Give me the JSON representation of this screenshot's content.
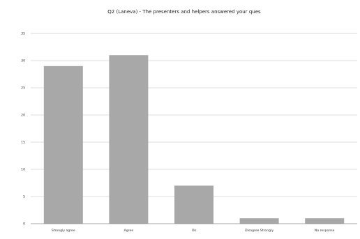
{
  "chart_data": {
    "type": "bar",
    "title": "Q2  (Laneva)  -  The  presenters  and  helpers  answered  your  ques",
    "xlabel": "",
    "ylabel": "",
    "categories": [
      "Strongly agree",
      "Agree",
      "Ok",
      "Disagree Strongly",
      "No response"
    ],
    "values": [
      29,
      31,
      7,
      1,
      1
    ],
    "ylim": [
      0,
      35
    ],
    "yticks": [
      0,
      5,
      10,
      15,
      20,
      25,
      30,
      35
    ],
    "grid": true,
    "legend": "none",
    "bar_color": "#a8a8a8",
    "grid_color": "#d0d0d0"
  }
}
